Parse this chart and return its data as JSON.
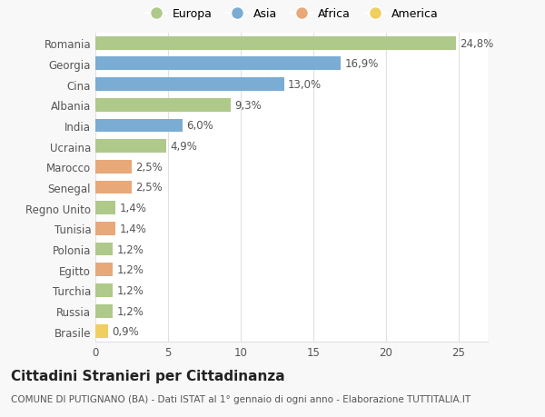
{
  "categories": [
    "Romania",
    "Georgia",
    "Cina",
    "Albania",
    "India",
    "Ucraina",
    "Marocco",
    "Senegal",
    "Regno Unito",
    "Tunisia",
    "Polonia",
    "Egitto",
    "Turchia",
    "Russia",
    "Brasile"
  ],
  "values": [
    24.8,
    16.9,
    13.0,
    9.3,
    6.0,
    4.9,
    2.5,
    2.5,
    1.4,
    1.4,
    1.2,
    1.2,
    1.2,
    1.2,
    0.9
  ],
  "continents": [
    "Europa",
    "Asia",
    "Asia",
    "Europa",
    "Asia",
    "Europa",
    "Africa",
    "Africa",
    "Europa",
    "Africa",
    "Europa",
    "Africa",
    "Europa",
    "Europa",
    "America"
  ],
  "colors": {
    "Europa": "#aec98a",
    "Asia": "#7aacd4",
    "Africa": "#e8a878",
    "America": "#f0ce60"
  },
  "legend_order": [
    "Europa",
    "Asia",
    "Africa",
    "America"
  ],
  "labels": [
    "24,8%",
    "16,9%",
    "13,0%",
    "9,3%",
    "6,0%",
    "4,9%",
    "2,5%",
    "2,5%",
    "1,4%",
    "1,4%",
    "1,2%",
    "1,2%",
    "1,2%",
    "1,2%",
    "0,9%"
  ],
  "xlim": [
    0,
    27
  ],
  "xticks": [
    0,
    5,
    10,
    15,
    20,
    25
  ],
  "title": "Cittadini Stranieri per Cittadinanza",
  "subtitle": "COMUNE DI PUTIGNANO (BA) - Dati ISTAT al 1° gennaio di ogni anno - Elaborazione TUTTITALIA.IT",
  "background_color": "#f8f8f8",
  "plot_background_color": "#ffffff",
  "grid_color": "#e0e0e0",
  "bar_height": 0.65,
  "label_fontsize": 8.5,
  "title_fontsize": 11,
  "subtitle_fontsize": 7.5,
  "tick_fontsize": 8.5,
  "legend_fontsize": 9
}
